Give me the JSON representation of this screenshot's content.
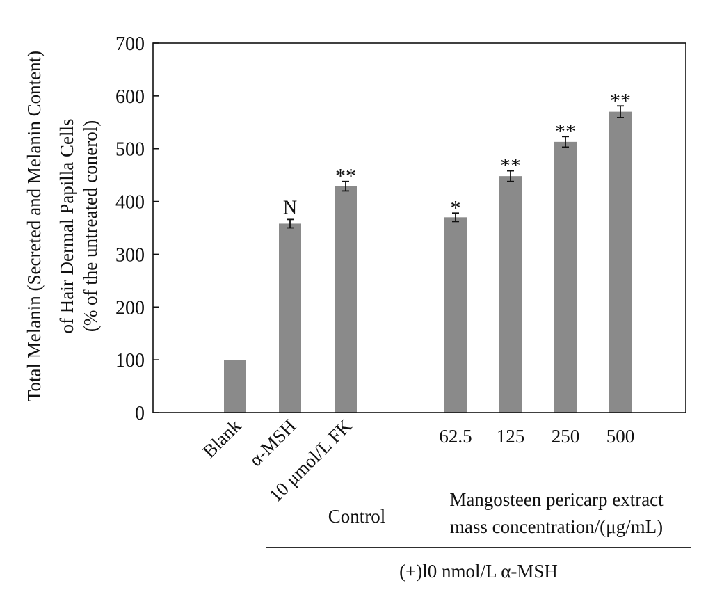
{
  "chart_data": {
    "type": "bar",
    "ylabel_lines": [
      "Total Melanin (Secreted and Melanin Content)",
      "of Hair Dermal Papilla Cells",
      "(% of the untreated conerol)"
    ],
    "ylim": [
      0,
      700
    ],
    "yticks": [
      "0",
      "100",
      "200",
      "300",
      "400",
      "500",
      "600",
      "700"
    ],
    "categories": [
      "Blank",
      "α-MSH",
      "10 μmol/L FK",
      "62.5",
      "125",
      "250",
      "500"
    ],
    "values": [
      100,
      358,
      429,
      370,
      448,
      513,
      570
    ],
    "errors": [
      0,
      8,
      9,
      8,
      10,
      10,
      11
    ],
    "annotations": [
      "",
      "N",
      "**",
      "*",
      "**",
      "**",
      "**"
    ],
    "group_labels": {
      "control": "Control",
      "extract_lines": [
        "Mangosteen pericarp extract",
        "mass concentration/(μg/mL)"
      ],
      "treatment": "(+)l0 nmol/L α-MSH"
    },
    "bar_color": "#8a8a8a",
    "grid": false
  }
}
